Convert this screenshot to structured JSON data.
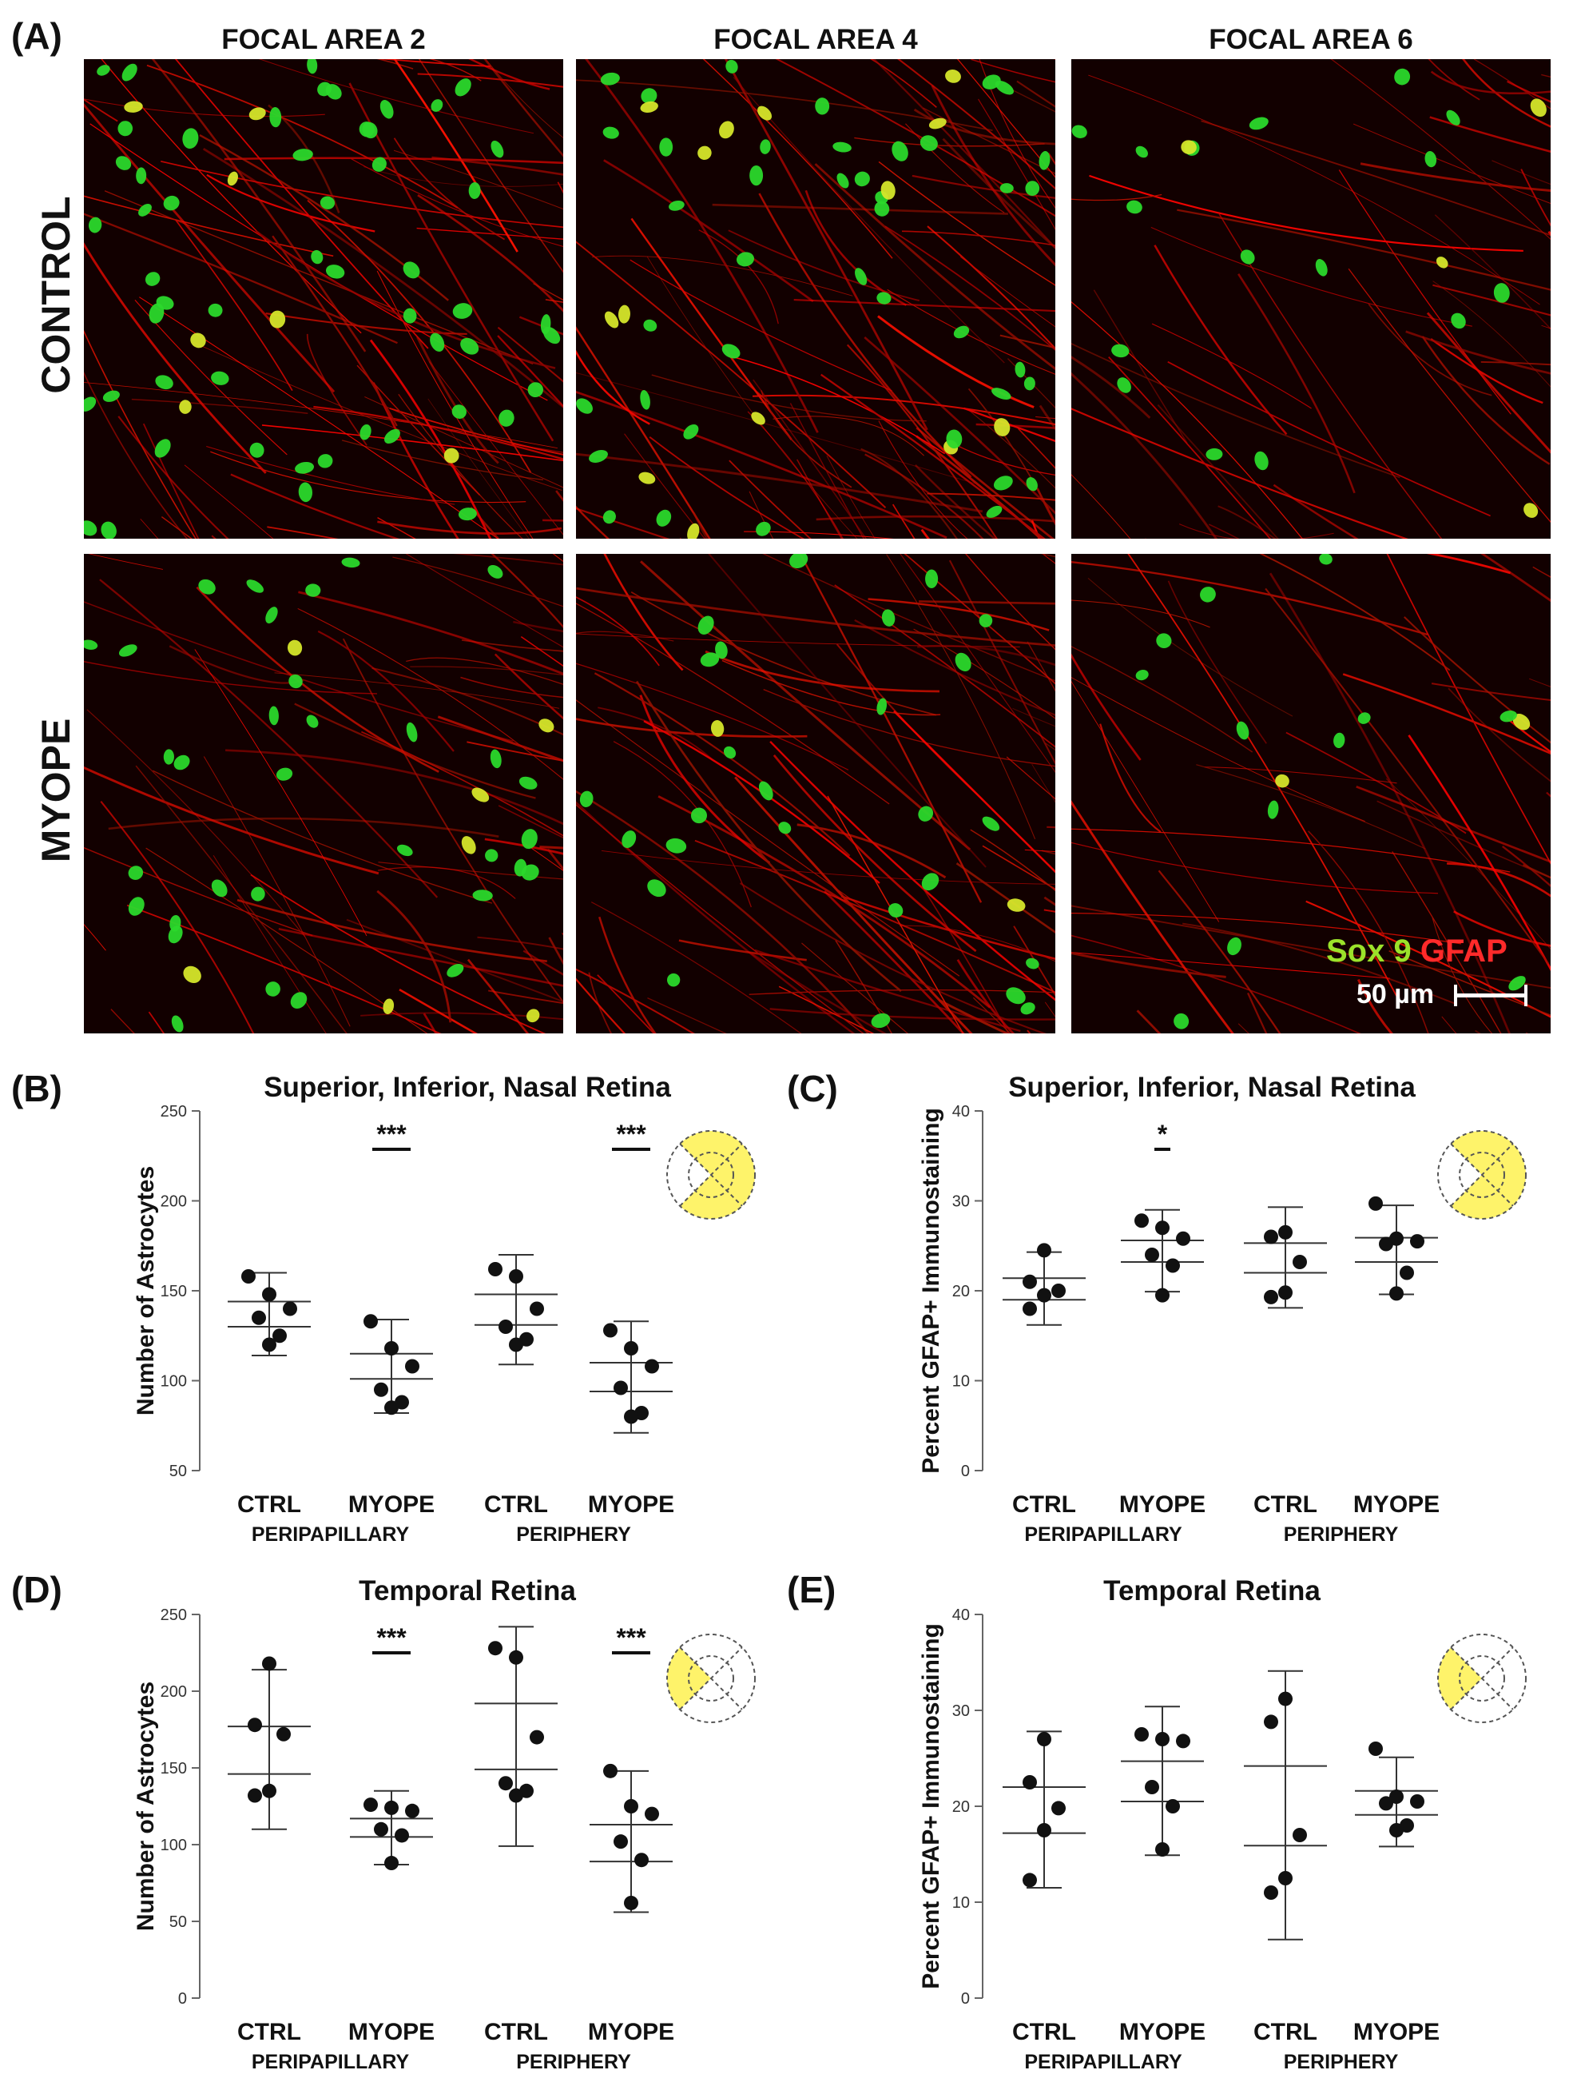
{
  "panel_a": {
    "letter": "(A)",
    "columns": [
      "FOCAL AREA 2",
      "FOCAL AREA 4",
      "FOCAL AREA 6"
    ],
    "rows": [
      "CONTROL",
      "MYOPE"
    ],
    "legend": {
      "sox": "Sox 9",
      "gfap": "GFAP",
      "sox_color": "#9be22a",
      "gfap_color": "#ff2a2a"
    },
    "scale_bar": "50 µm"
  },
  "chart_data": [
    {
      "id": "B",
      "letter": "(B)",
      "type": "scatter",
      "title": "Superior, Inferior, Nasal Retina",
      "ylabel": "Number of Astrocytes",
      "ylim": [
        50,
        250
      ],
      "yticks": [
        50,
        100,
        150,
        200,
        250
      ],
      "categories": [
        "CTRL",
        "MYOPE",
        "CTRL",
        "MYOPE"
      ],
      "groups": [
        "PERIPAPILLARY",
        "PERIPHERY"
      ],
      "series": [
        {
          "points": [
            158,
            148,
            140,
            135,
            125,
            120
          ],
          "upper": 160,
          "mean_hi": 144,
          "mean_lo": 130,
          "lower": 114
        },
        {
          "points": [
            133,
            118,
            108,
            95,
            88,
            85
          ],
          "upper": 134,
          "mean_hi": 115,
          "mean_lo": 101,
          "lower": 82
        },
        {
          "points": [
            162,
            158,
            140,
            130,
            123,
            120
          ],
          "upper": 170,
          "mean_hi": 148,
          "mean_lo": 131,
          "lower": 109
        },
        {
          "points": [
            128,
            118,
            108,
            96,
            82,
            80
          ],
          "upper": 133,
          "mean_hi": 110,
          "mean_lo": 94,
          "lower": 71
        }
      ],
      "significance": [
        {
          "label": "***",
          "at": 1
        },
        {
          "label": "***",
          "at": 3
        }
      ],
      "icon_highlight": "superior-inferior-nasal",
      "highlight_color": "#fef36a"
    },
    {
      "id": "C",
      "letter": "(C)",
      "type": "scatter",
      "title": "Superior, Inferior, Nasal Retina",
      "ylabel": "Percent GFAP+ Immunostaining",
      "ylim": [
        0,
        40
      ],
      "yticks": [
        0,
        10,
        20,
        30,
        40
      ],
      "categories": [
        "CTRL",
        "MYOPE",
        "CTRL",
        "MYOPE"
      ],
      "groups": [
        "PERIPAPILLARY",
        "PERIPHERY"
      ],
      "series": [
        {
          "points": [
            24.5,
            21.0,
            20.0,
            19.5,
            18.0
          ],
          "upper": 24.3,
          "mean_hi": 21.4,
          "mean_lo": 19.0,
          "lower": 16.2
        },
        {
          "points": [
            27.8,
            27.0,
            25.8,
            24.0,
            22.8,
            19.5
          ],
          "upper": 29.0,
          "mean_hi": 25.6,
          "mean_lo": 23.2,
          "lower": 19.9
        },
        {
          "points": [
            26.5,
            26.0,
            23.2,
            19.8,
            19.3
          ],
          "upper": 29.3,
          "mean_hi": 25.3,
          "mean_lo": 22.0,
          "lower": 18.1
        },
        {
          "points": [
            29.7,
            25.8,
            25.5,
            25.2,
            22.0,
            19.7
          ],
          "upper": 29.5,
          "mean_hi": 25.9,
          "mean_lo": 23.2,
          "lower": 19.6
        }
      ],
      "significance": [
        {
          "label": "*",
          "at": 1
        }
      ],
      "icon_highlight": "superior-inferior-nasal",
      "highlight_color": "#fef36a"
    },
    {
      "id": "D",
      "letter": "(D)",
      "type": "scatter",
      "title": "Temporal Retina",
      "ylabel": "Number of Astrocytes",
      "ylim": [
        0,
        250
      ],
      "yticks": [
        0,
        50,
        100,
        150,
        200,
        250
      ],
      "categories": [
        "CTRL",
        "MYOPE",
        "CTRL",
        "MYOPE"
      ],
      "groups": [
        "PERIPAPILLARY",
        "PERIPHERY"
      ],
      "series": [
        {
          "points": [
            218,
            178,
            172,
            135,
            132
          ],
          "upper": 214,
          "mean_hi": 177,
          "mean_lo": 146,
          "lower": 110
        },
        {
          "points": [
            126,
            124,
            122,
            110,
            106,
            88
          ],
          "upper": 135,
          "mean_hi": 117,
          "mean_lo": 105,
          "lower": 87
        },
        {
          "points": [
            228,
            222,
            170,
            140,
            135,
            132
          ],
          "upper": 242,
          "mean_hi": 192,
          "mean_lo": 149,
          "lower": 99
        },
        {
          "points": [
            148,
            125,
            120,
            102,
            90,
            62
          ],
          "upper": 148,
          "mean_hi": 113,
          "mean_lo": 89,
          "lower": 56
        }
      ],
      "significance": [
        {
          "label": "***",
          "at": 1
        },
        {
          "label": "***",
          "at": 3
        }
      ],
      "icon_highlight": "temporal",
      "highlight_color": "#fef36a"
    },
    {
      "id": "E",
      "letter": "(E)",
      "type": "scatter",
      "title": "Temporal Retina",
      "ylabel": "Percent GFAP+ Immunostaining",
      "ylim": [
        0,
        40
      ],
      "yticks": [
        0,
        10,
        20,
        30,
        40
      ],
      "categories": [
        "CTRL",
        "MYOPE",
        "CTRL",
        "MYOPE"
      ],
      "groups": [
        "PERIPAPILLARY",
        "PERIPHERY"
      ],
      "series": [
        {
          "points": [
            27.0,
            22.5,
            19.8,
            17.5,
            12.3
          ],
          "upper": 27.8,
          "mean_hi": 22.0,
          "mean_lo": 17.2,
          "lower": 11.5
        },
        {
          "points": [
            27.5,
            27.0,
            26.8,
            22.0,
            20.0,
            15.5
          ],
          "upper": 30.4,
          "mean_hi": 24.7,
          "mean_lo": 20.5,
          "lower": 14.9
        },
        {
          "points": [
            31.2,
            28.8,
            17.0,
            12.5,
            11.0
          ],
          "upper": 34.1,
          "mean_hi": 24.2,
          "mean_lo": 15.9,
          "lower": 6.1
        },
        {
          "points": [
            26.0,
            21.0,
            20.5,
            20.3,
            18.0,
            17.5
          ],
          "upper": 25.1,
          "mean_hi": 21.6,
          "mean_lo": 19.1,
          "lower": 15.8
        }
      ],
      "significance": [],
      "icon_highlight": "temporal",
      "highlight_color": "#fef36a"
    }
  ]
}
